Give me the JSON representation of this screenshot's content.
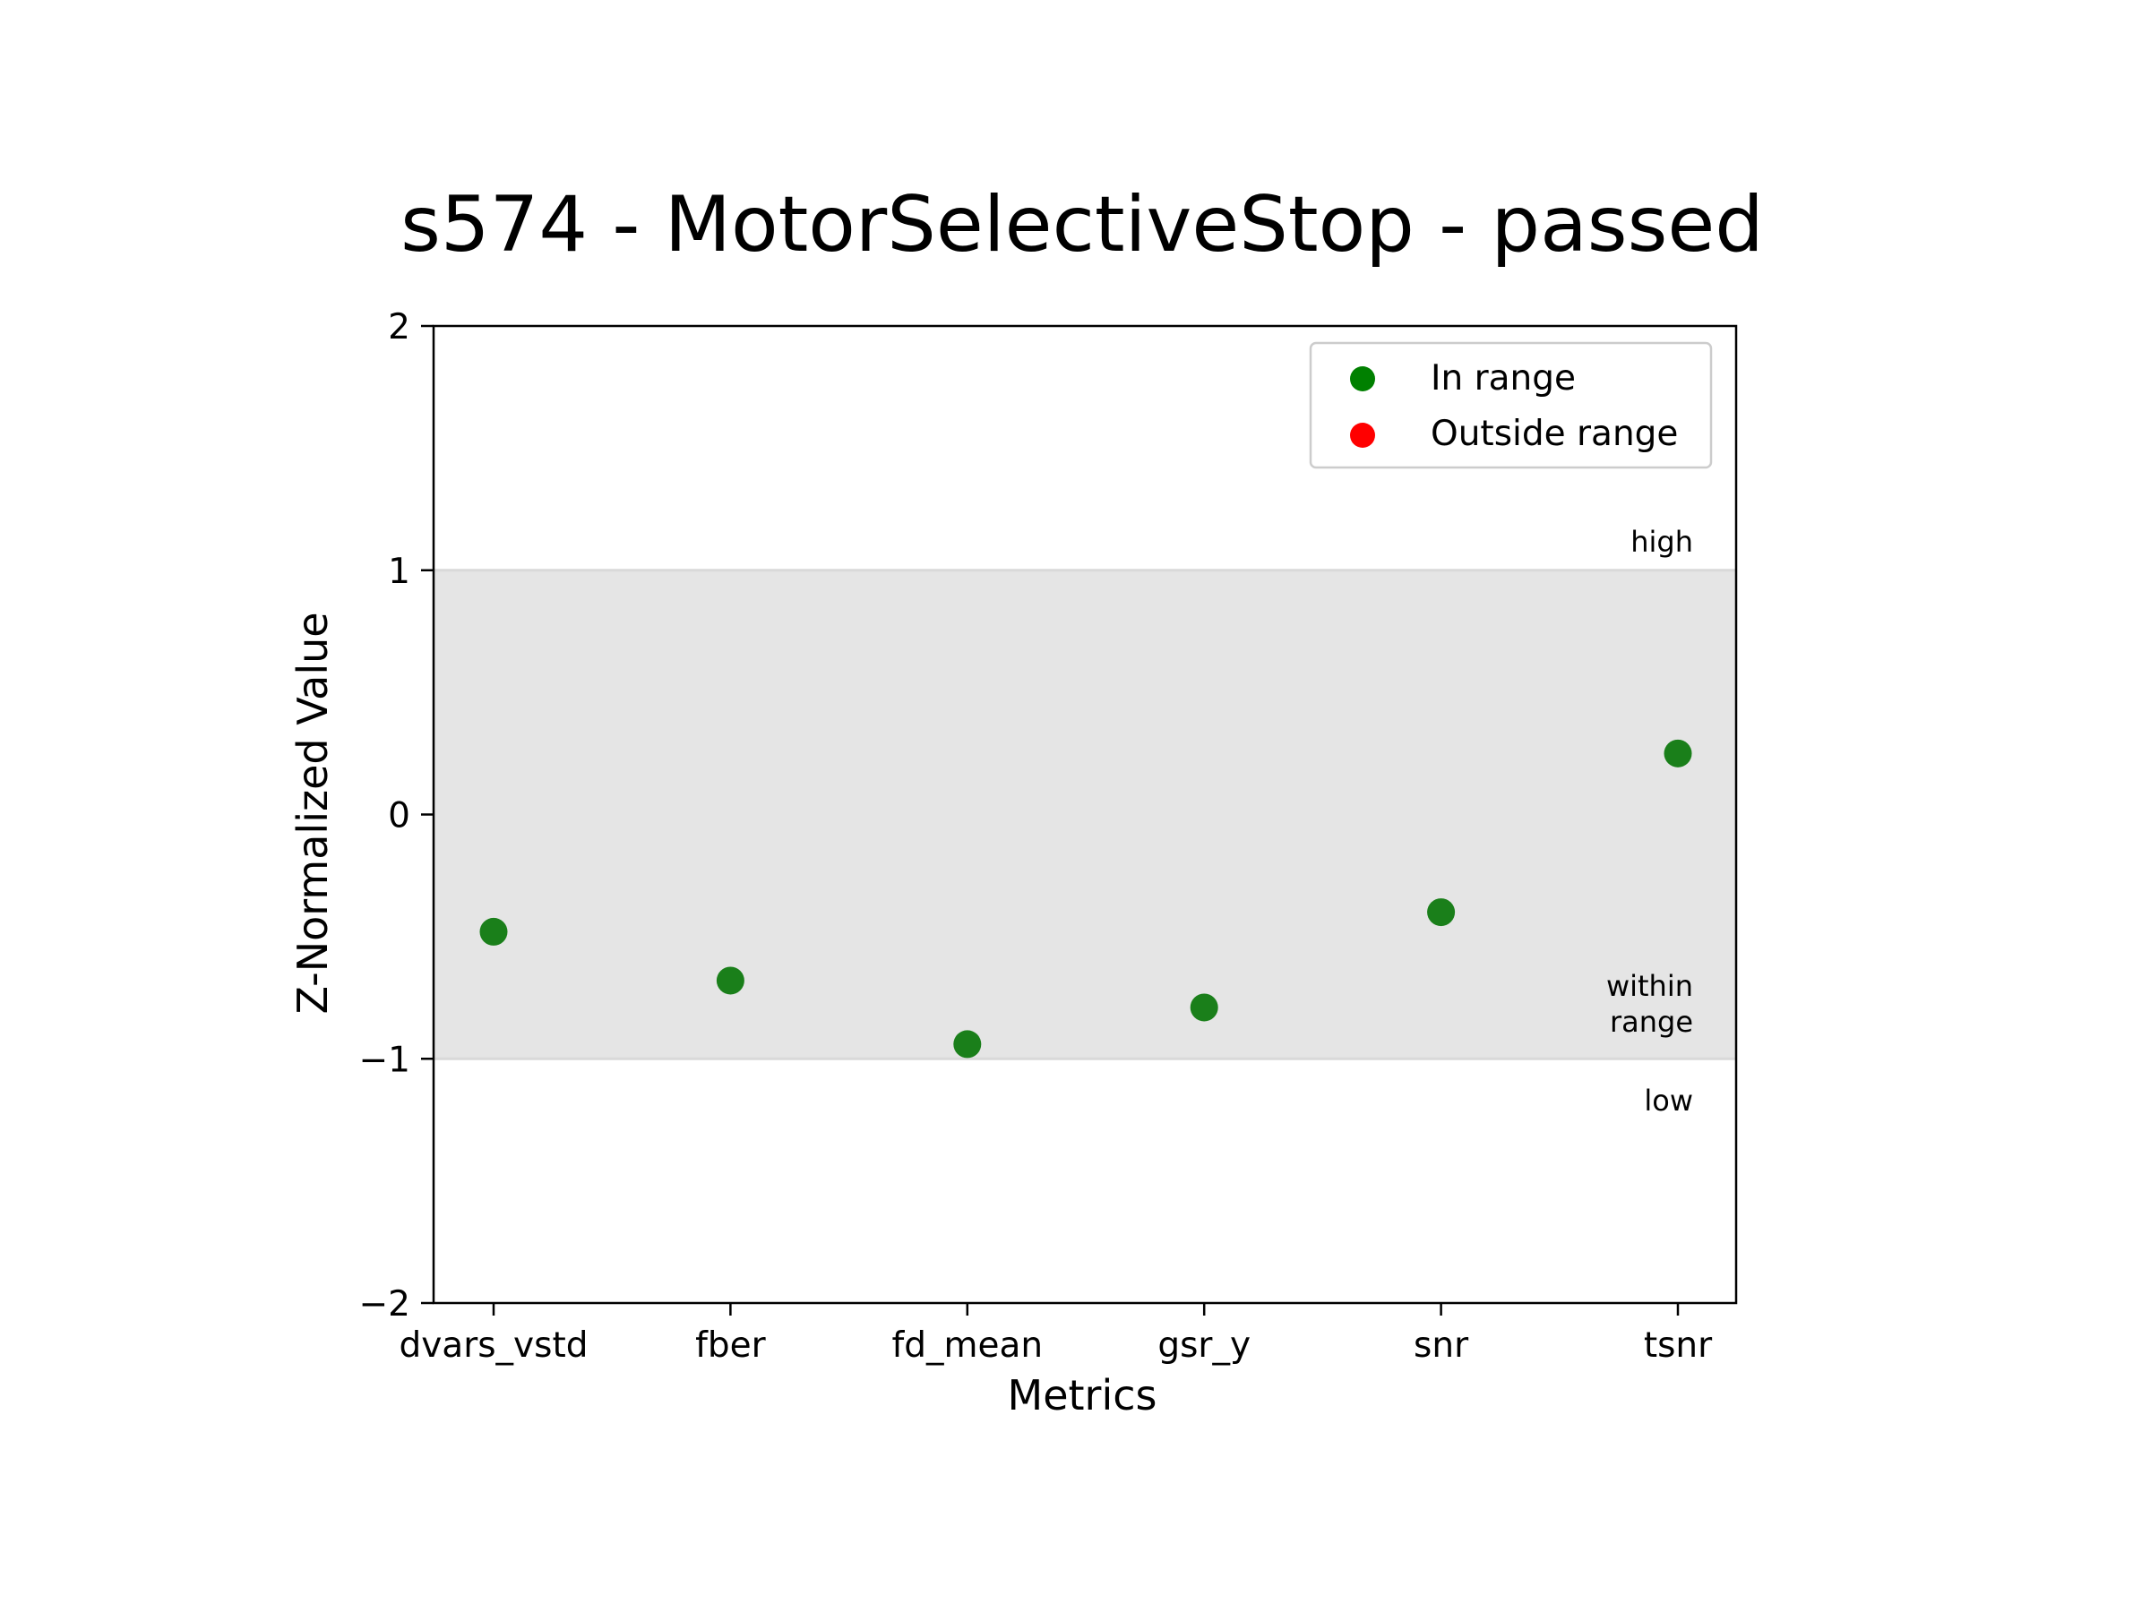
{
  "chart_data": {
    "type": "scatter",
    "title": "s574 - MotorSelectiveStop - passed",
    "xlabel": "Metrics",
    "ylabel": "Z-Normalized Value",
    "categories": [
      "dvars_vstd",
      "fber",
      "fd_mean",
      "gsr_y",
      "snr",
      "tsnr"
    ],
    "values": [
      -0.48,
      -0.68,
      -0.94,
      -0.79,
      -0.4,
      0.25
    ],
    "ylim": [
      -2,
      2
    ],
    "yticks": [
      {
        "value": 2,
        "label": "2"
      },
      {
        "value": 1,
        "label": "1"
      },
      {
        "value": 0,
        "label": "0"
      },
      {
        "value": -1,
        "label": "−1"
      },
      {
        "value": -2,
        "label": "−2"
      }
    ],
    "range_band": [
      -1,
      1
    ],
    "band_color": "#e5e5e5",
    "band_line_color": "#d9d9d9",
    "point_color": "#1a7f1a",
    "annotations": {
      "high": "high",
      "within_line1": "within",
      "within_line2": "range",
      "low": "low"
    },
    "legend": {
      "placement": "top-right",
      "entries": [
        {
          "label": "In range",
          "color": "#008000"
        },
        {
          "label": "Outside range",
          "color": "#ff0000"
        }
      ]
    },
    "grid": false
  }
}
